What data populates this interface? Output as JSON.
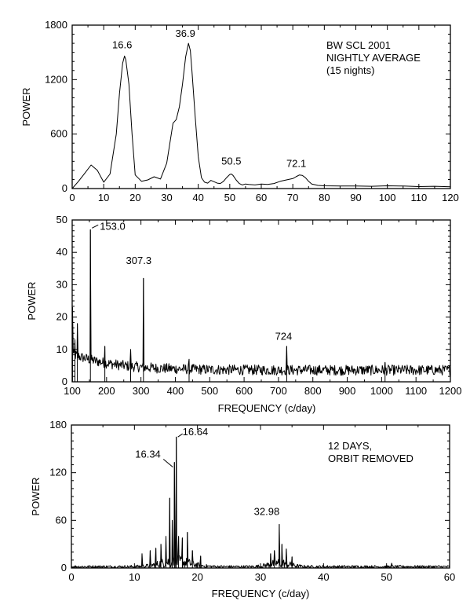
{
  "chart_data": [
    {
      "type": "line",
      "ylabel": "POWER",
      "xlabel": "",
      "xlim": [
        0,
        120
      ],
      "ylim": [
        0,
        1800
      ],
      "xticks": [
        0,
        10,
        20,
        30,
        40,
        50,
        60,
        70,
        80,
        90,
        100,
        110,
        120
      ],
      "yticks": [
        0,
        600,
        1200,
        1800
      ],
      "info_lines": [
        "BW SCL 2001",
        "NIGHTLY AVERAGE",
        "(15 nights)"
      ],
      "peak_labels": [
        {
          "text": "16.6",
          "x": 16.6,
          "y": 1460
        },
        {
          "text": "36.9",
          "x": 36.9,
          "y": 1600
        },
        {
          "text": "50.5",
          "x": 50.5,
          "y": 160
        },
        {
          "text": "72.1",
          "x": 72.1,
          "y": 150
        }
      ],
      "series": [
        {
          "x": [
            0,
            2,
            4,
            6,
            8,
            10,
            12,
            14,
            15,
            16,
            16.6,
            17,
            18,
            19,
            20,
            22,
            24,
            26,
            28,
            30,
            31,
            32,
            33,
            34,
            35,
            36,
            36.9,
            37.5,
            38,
            39,
            40,
            41,
            42,
            43,
            44,
            45,
            46,
            47,
            48,
            49,
            50,
            50.5,
            51,
            52,
            53,
            54,
            55,
            56,
            58,
            60,
            62,
            64,
            66,
            68,
            70,
            71,
            72.1,
            73,
            74,
            75,
            76,
            78,
            80,
            85,
            90,
            95,
            100,
            105,
            110,
            115,
            120
          ],
          "y": [
            0,
            80,
            170,
            260,
            200,
            70,
            160,
            600,
            1050,
            1380,
            1460,
            1420,
            1150,
            600,
            150,
            80,
            95,
            130,
            105,
            280,
            500,
            720,
            760,
            900,
            1150,
            1450,
            1600,
            1520,
            1300,
            800,
            350,
            120,
            70,
            60,
            90,
            75,
            60,
            55,
            80,
            120,
            155,
            160,
            145,
            95,
            55,
            40,
            50,
            45,
            40,
            50,
            45,
            55,
            80,
            95,
            110,
            130,
            150,
            145,
            120,
            80,
            50,
            35,
            30,
            28,
            28,
            25,
            30,
            28,
            22,
            25,
            20
          ]
        }
      ]
    },
    {
      "type": "line",
      "ylabel": "POWER",
      "xlabel": "FREQUENCY (c/day)",
      "xlim": [
        100,
        1200
      ],
      "ylim": [
        0,
        50
      ],
      "xticks": [
        100,
        200,
        300,
        400,
        500,
        600,
        700,
        800,
        900,
        1000,
        1100,
        1200
      ],
      "yticks": [
        0,
        10,
        20,
        30,
        40,
        50
      ],
      "peak_labels": [
        {
          "text": "153.0",
          "x": 153.0,
          "y": 47
        },
        {
          "text": "307.3",
          "x": 307.3,
          "y": 32
        },
        {
          "text": "724",
          "x": 724,
          "y": 11
        }
      ],
      "spikes": [
        {
          "x": 101,
          "y": 23
        },
        {
          "x": 108,
          "y": 13
        },
        {
          "x": 115,
          "y": 18
        },
        {
          "x": 153,
          "y": 47
        },
        {
          "x": 195,
          "y": 11
        },
        {
          "x": 270,
          "y": 10
        },
        {
          "x": 307.3,
          "y": 32
        },
        {
          "x": 440,
          "y": 7
        },
        {
          "x": 724,
          "y": 11
        },
        {
          "x": 1010,
          "y": 6
        }
      ]
    },
    {
      "type": "line",
      "ylabel": "POWER",
      "xlabel": "FREQUENCY (c/day)",
      "xlim": [
        0,
        60
      ],
      "ylim": [
        0,
        180
      ],
      "xticks": [
        0,
        10,
        20,
        30,
        40,
        50,
        60
      ],
      "yticks": [
        0,
        60,
        120,
        180
      ],
      "info_lines": [
        "12 DAYS,",
        "ORBIT REMOVED"
      ],
      "peak_labels": [
        {
          "text": "16.34",
          "x": 16.34,
          "y": 133
        },
        {
          "text": "16.64",
          "x": 16.64,
          "y": 165
        },
        {
          "text": "32.98",
          "x": 32.98,
          "y": 55
        }
      ],
      "spikes": [
        {
          "x": 11.2,
          "y": 18
        },
        {
          "x": 12.5,
          "y": 22
        },
        {
          "x": 13.4,
          "y": 25
        },
        {
          "x": 14.2,
          "y": 30
        },
        {
          "x": 15.0,
          "y": 40
        },
        {
          "x": 15.6,
          "y": 88
        },
        {
          "x": 16.0,
          "y": 60
        },
        {
          "x": 16.34,
          "y": 133
        },
        {
          "x": 16.64,
          "y": 165
        },
        {
          "x": 17.0,
          "y": 40
        },
        {
          "x": 17.6,
          "y": 38
        },
        {
          "x": 18.4,
          "y": 45
        },
        {
          "x": 19.2,
          "y": 22
        },
        {
          "x": 20.5,
          "y": 15
        },
        {
          "x": 31.6,
          "y": 18
        },
        {
          "x": 32.2,
          "y": 22
        },
        {
          "x": 32.98,
          "y": 55
        },
        {
          "x": 33.4,
          "y": 30
        },
        {
          "x": 34.1,
          "y": 24
        },
        {
          "x": 35.0,
          "y": 14
        },
        {
          "x": 50.8,
          "y": 6
        }
      ]
    }
  ]
}
